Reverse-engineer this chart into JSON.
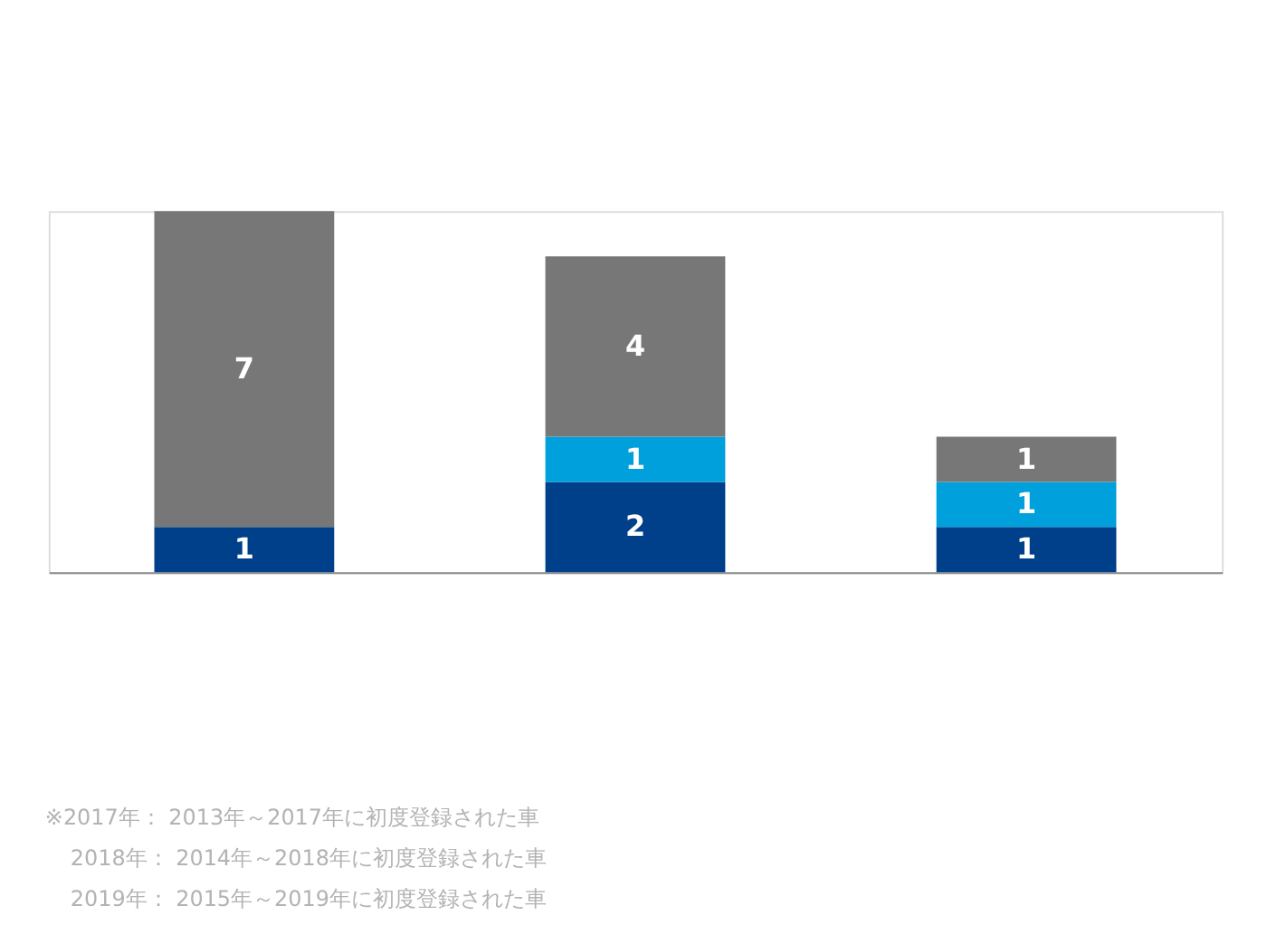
{
  "chart_data": {
    "type": "bar",
    "stacked": true,
    "data_labels": true,
    "grid": false,
    "categories": [
      null,
      null,
      null
    ],
    "series": [
      {
        "color": "#003f8a",
        "values": [
          1,
          2,
          1
        ]
      },
      {
        "color": "#00a0dc",
        "values": [
          null,
          1,
          1
        ]
      },
      {
        "color": "#777777",
        "values": [
          7,
          4,
          1
        ]
      }
    ],
    "annotations": [
      "※2017年： 2013年～2017年に初度登録された車",
      "2018年： 2014年～2018年に初度登録された車",
      "2019年： 2015年～2019年に初度登録された車"
    ]
  }
}
